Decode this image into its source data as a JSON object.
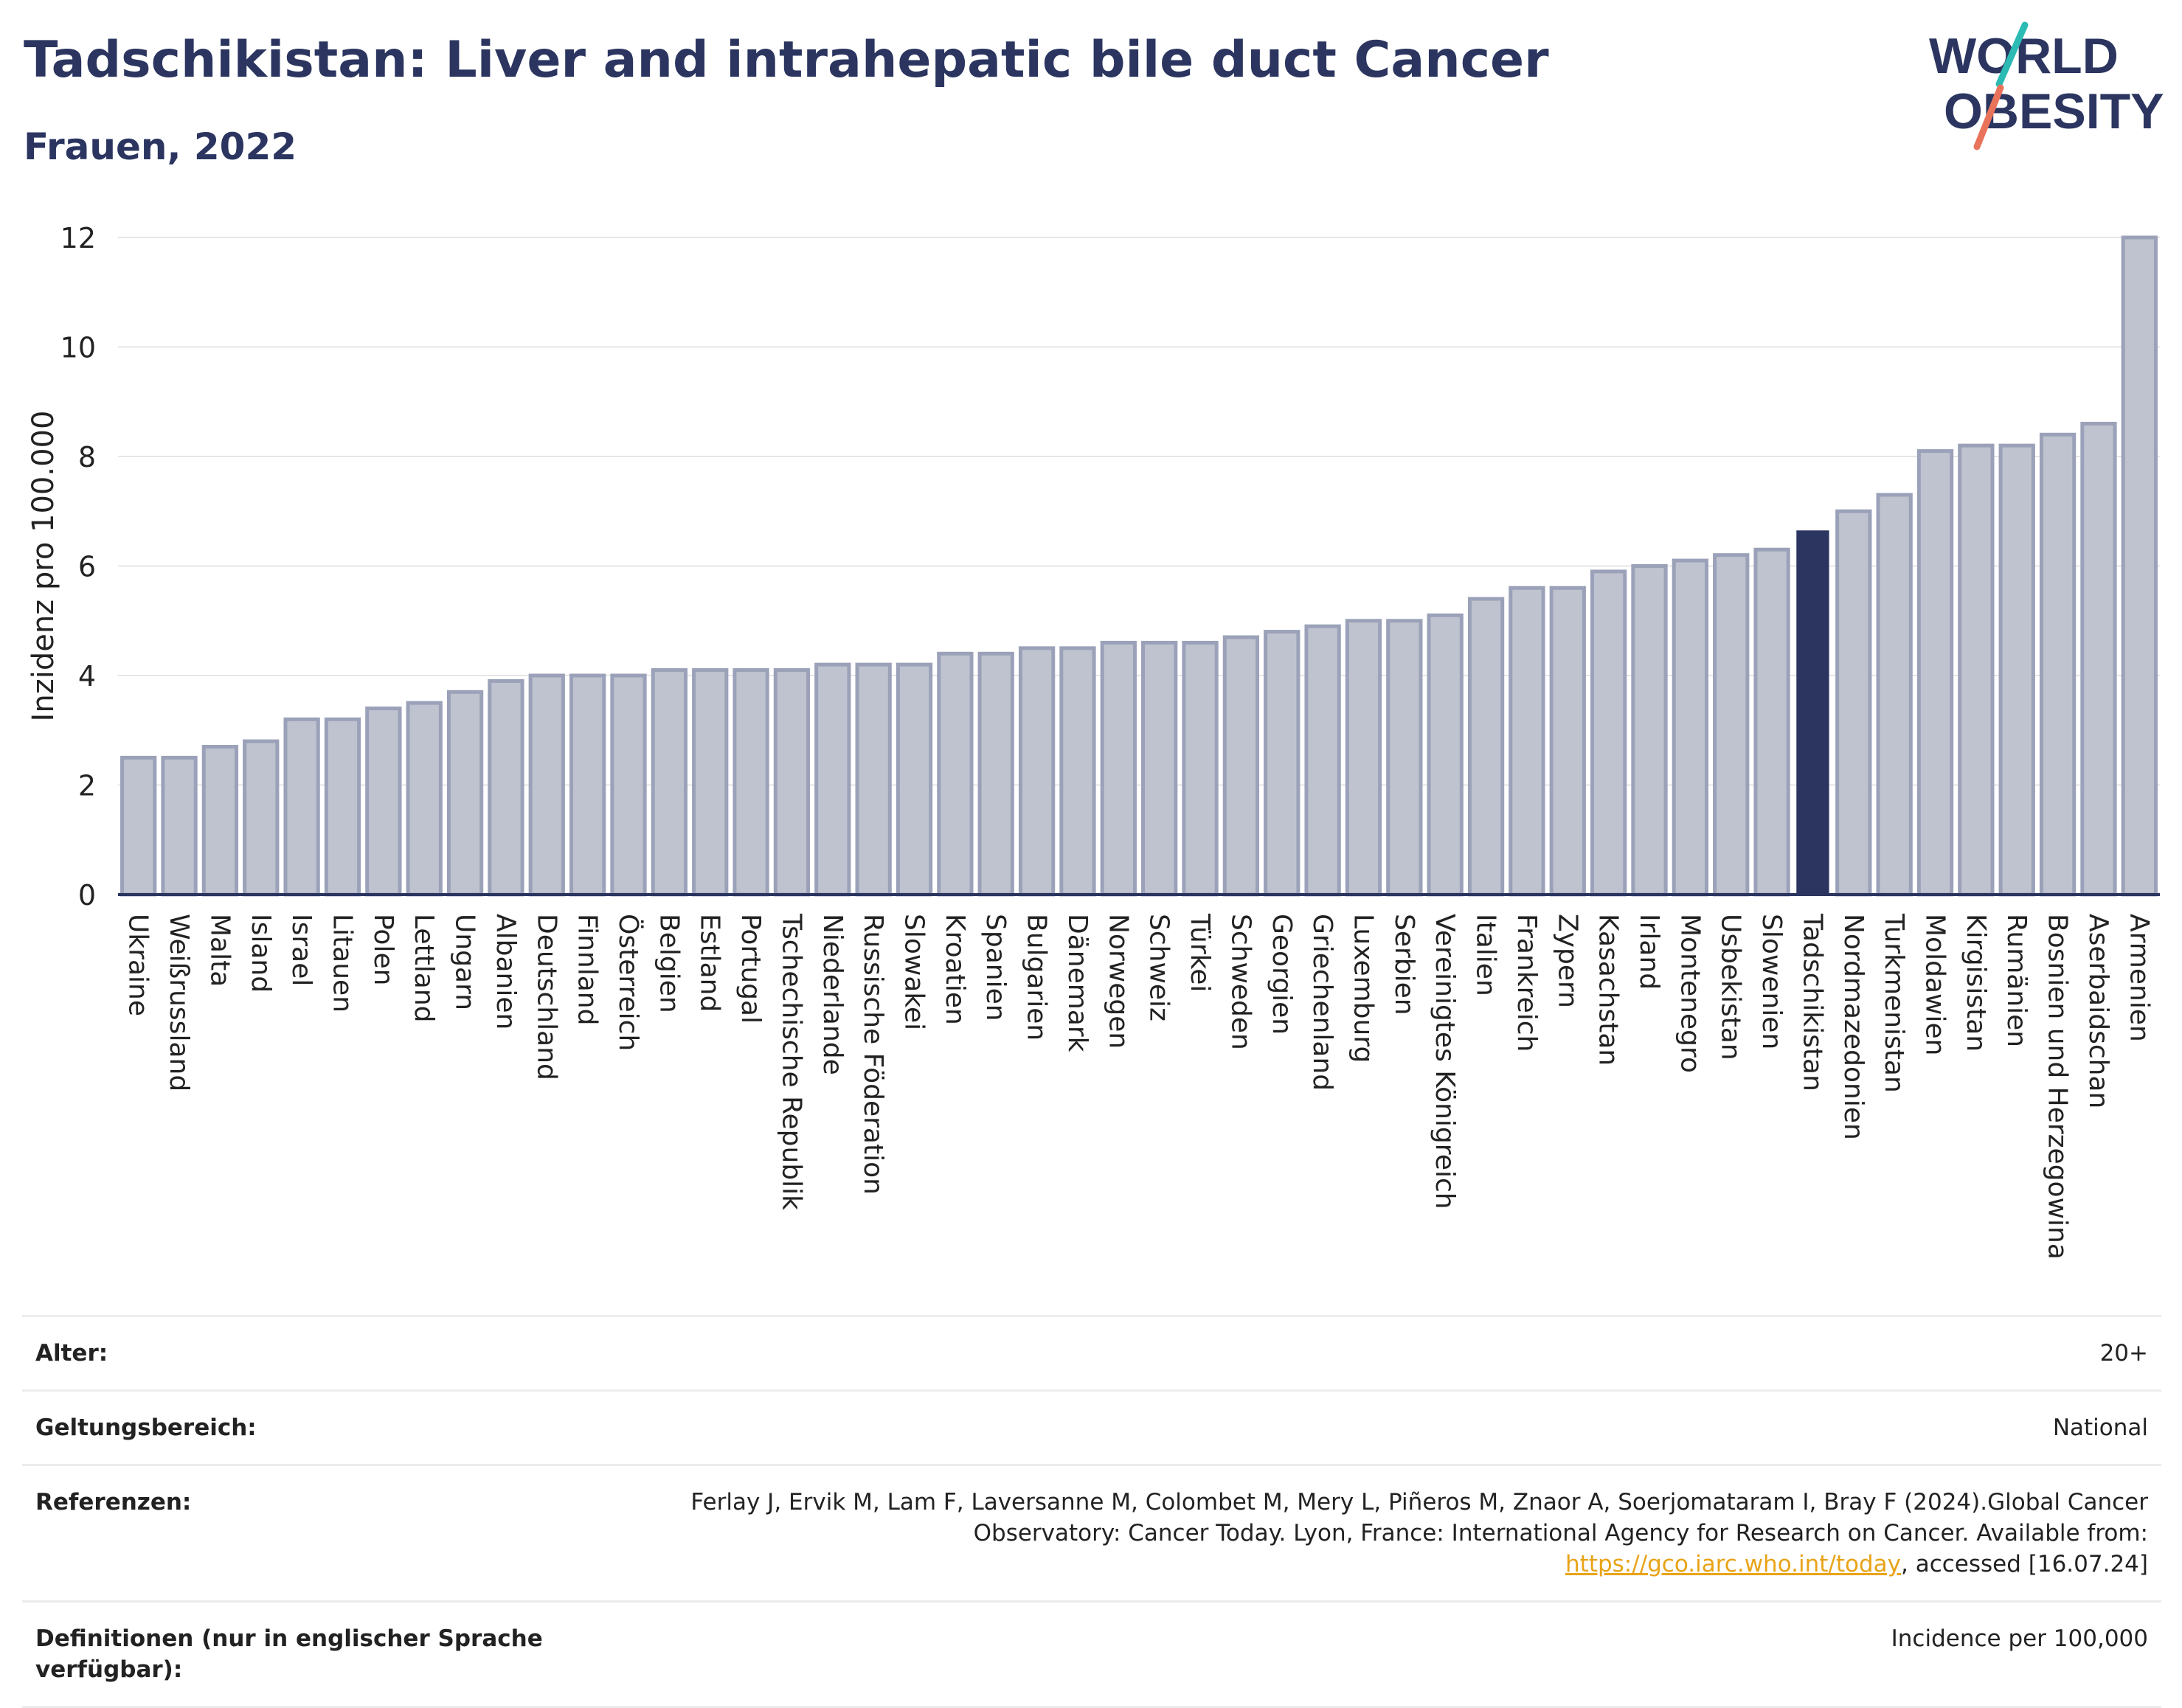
{
  "header": {
    "title": "Tadschikistan: Liver and intrahepatic bile duct Cancer",
    "subtitle": "Frauen, 2022"
  },
  "logo": {
    "line1": "WORLD",
    "line2": "OBESITY",
    "colors": {
      "text": "#2b3560",
      "slash_teal": "#2bbbb4",
      "slash_coral": "#e8735a"
    }
  },
  "chart_data": {
    "type": "bar",
    "title": "Tadschikistan: Liver and intrahepatic bile duct Cancer",
    "subtitle": "Frauen, 2022",
    "ylabel": "Inzidenz pro 100.000",
    "ylim": [
      0,
      12
    ],
    "yticks": [
      0,
      2,
      4,
      6,
      8,
      10,
      12
    ],
    "grid": true,
    "highlight": "Tadschikistan",
    "colors": {
      "bar": "#bfc3cf",
      "bar_border": "#9ba1b8",
      "highlight": "#2b3560",
      "grid": "#e6e6e6",
      "axis": "#2b3560"
    },
    "categories": [
      "Ukraine",
      "Weißrussland",
      "Malta",
      "Island",
      "Israel",
      "Litauen",
      "Polen",
      "Lettland",
      "Ungarn",
      "Albanien",
      "Deutschland",
      "Finnland",
      "Österreich",
      "Belgien",
      "Estland",
      "Portugal",
      "Tschechische Republik",
      "Niederlande",
      "Russische Föderation",
      "Slowakei",
      "Kroatien",
      "Spanien",
      "Bulgarien",
      "Dänemark",
      "Norwegen",
      "Schweiz",
      "Türkei",
      "Schweden",
      "Georgien",
      "Griechenland",
      "Luxemburg",
      "Serbien",
      "Vereinigtes Königreich",
      "Italien",
      "Frankreich",
      "Zypern",
      "Kasachstan",
      "Irland",
      "Montenegro",
      "Usbekistan",
      "Slowenien",
      "Tadschikistan",
      "Nordmazedonien",
      "Turkmenistan",
      "Moldawien",
      "Kirgisistan",
      "Rumänien",
      "Bosnien und Herzegowina",
      "Aserbaidschan",
      "Armenien"
    ],
    "values": [
      2.5,
      2.5,
      2.7,
      2.8,
      3.2,
      3.2,
      3.4,
      3.5,
      3.7,
      3.9,
      4.0,
      4.0,
      4.0,
      4.1,
      4.1,
      4.1,
      4.1,
      4.2,
      4.2,
      4.2,
      4.4,
      4.4,
      4.5,
      4.5,
      4.6,
      4.6,
      4.6,
      4.7,
      4.8,
      4.9,
      5.0,
      5.0,
      5.1,
      5.4,
      5.6,
      5.6,
      5.9,
      6.0,
      6.1,
      6.2,
      6.3,
      6.65,
      7.0,
      7.3,
      8.1,
      8.2,
      8.2,
      8.4,
      8.6,
      12.0
    ]
  },
  "info": {
    "rows": [
      {
        "label": "Alter:",
        "value": "20+"
      },
      {
        "label": "Geltungsbereich:",
        "value": "National"
      },
      {
        "label": "Referenzen:",
        "value_before": "Ferlay J, Ervik M, Lam F, Laversanne M, Colombet M, Mery L, Piñeros M, Znaor A, Soerjomataram I, Bray F (2024).Global Cancer Observatory: Cancer Today. Lyon, France: International Agency for Research on Cancer. Available from: ",
        "link": "https://gco.iarc.who.int/today",
        "value_after": ", accessed [16.07.24]"
      },
      {
        "label": "Definitionen (nur in englischer Sprache verfügbar):",
        "value": "Incidence per 100,000"
      }
    ]
  }
}
